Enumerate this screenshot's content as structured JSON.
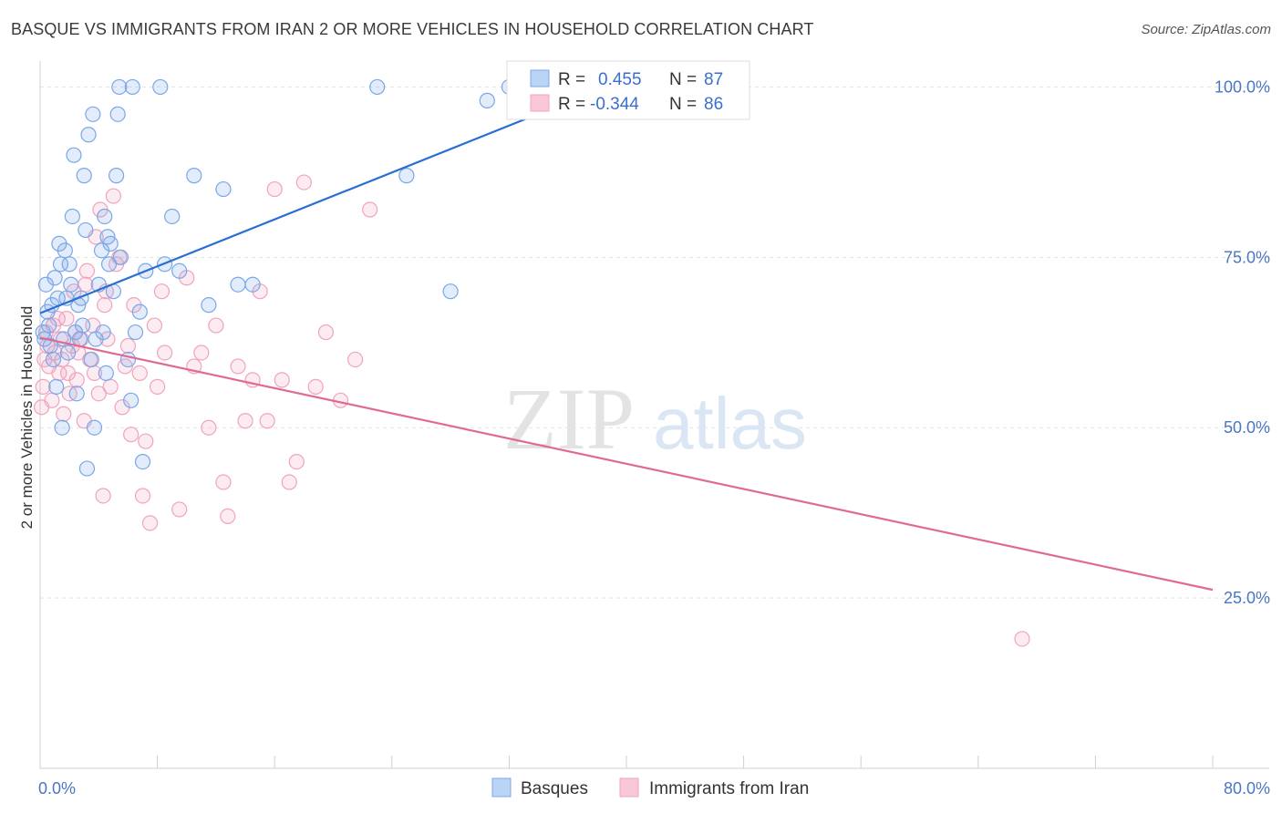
{
  "title": "BASQUE VS IMMIGRANTS FROM IRAN 2 OR MORE VEHICLES IN HOUSEHOLD CORRELATION CHART",
  "source": "Source: ZipAtlas.com",
  "watermark": {
    "zip": "ZIP",
    "atlas": "atlas"
  },
  "legend": {
    "rows": [
      {
        "r_label": "R =",
        "r_value": "0.455",
        "n_label": "N =",
        "n_value": "87"
      },
      {
        "r_label": "R =",
        "r_value": "-0.344",
        "n_label": "N =",
        "n_value": "86"
      }
    ]
  },
  "chart_data": {
    "type": "scatter",
    "title": "BASQUE VS IMMIGRANTS FROM IRAN 2 OR MORE VEHICLES IN HOUSEHOLD CORRELATION CHART",
    "xlabel": "",
    "ylabel": "2 or more Vehicles in Household",
    "xlim": [
      0,
      80
    ],
    "ylim": [
      0,
      103
    ],
    "x_ticks": [
      0,
      8,
      16,
      24,
      32,
      40,
      48,
      56,
      64,
      72,
      80
    ],
    "x_tick_labels": [
      {
        "value": 0,
        "label": "0.0%"
      },
      {
        "value": 80,
        "label": "80.0%"
      }
    ],
    "y_ticks": [
      {
        "value": 25,
        "label": "25.0%"
      },
      {
        "value": 50,
        "label": "50.0%"
      },
      {
        "value": 75,
        "label": "75.0%"
      },
      {
        "value": 100,
        "label": "100.0%"
      }
    ],
    "grid": true,
    "colors": {
      "blue": "#7aa7e8",
      "blue_line": "#2b6fd1",
      "pink": "#f0a3be",
      "pink_line": "#e06a92"
    },
    "series": [
      {
        "name": "Basques",
        "color": "#7aa7e8",
        "trend": {
          "x": [
            0,
            38
          ],
          "y": [
            66.8,
            99.5
          ]
        },
        "points": [
          [
            0.2,
            64
          ],
          [
            0.3,
            63
          ],
          [
            0.4,
            71
          ],
          [
            0.5,
            67
          ],
          [
            0.6,
            65
          ],
          [
            0.7,
            62
          ],
          [
            0.8,
            68
          ],
          [
            0.9,
            60
          ],
          [
            1.0,
            72
          ],
          [
            1.1,
            56
          ],
          [
            1.2,
            69
          ],
          [
            1.3,
            77
          ],
          [
            1.4,
            74
          ],
          [
            1.5,
            50
          ],
          [
            1.6,
            63
          ],
          [
            1.7,
            76
          ],
          [
            1.8,
            69
          ],
          [
            1.9,
            61
          ],
          [
            2.0,
            74
          ],
          [
            2.1,
            71
          ],
          [
            2.2,
            81
          ],
          [
            2.3,
            90
          ],
          [
            2.4,
            64
          ],
          [
            2.5,
            55
          ],
          [
            2.6,
            68
          ],
          [
            2.7,
            63
          ],
          [
            2.8,
            69
          ],
          [
            2.9,
            65
          ],
          [
            3.0,
            87
          ],
          [
            3.1,
            79
          ],
          [
            3.2,
            44
          ],
          [
            3.3,
            93
          ],
          [
            3.5,
            60
          ],
          [
            3.6,
            96
          ],
          [
            3.7,
            50
          ],
          [
            3.8,
            63
          ],
          [
            4.0,
            71
          ],
          [
            4.2,
            76
          ],
          [
            4.3,
            64
          ],
          [
            4.4,
            81
          ],
          [
            4.5,
            58
          ],
          [
            4.6,
            78
          ],
          [
            4.7,
            74
          ],
          [
            4.8,
            77
          ],
          [
            5.0,
            70
          ],
          [
            5.2,
            87
          ],
          [
            5.3,
            96
          ],
          [
            5.4,
            100
          ],
          [
            5.5,
            75
          ],
          [
            6.0,
            60
          ],
          [
            6.2,
            54
          ],
          [
            6.3,
            100
          ],
          [
            6.5,
            64
          ],
          [
            6.8,
            67
          ],
          [
            7.0,
            45
          ],
          [
            7.2,
            73
          ],
          [
            8.2,
            100
          ],
          [
            8.5,
            74
          ],
          [
            9.0,
            81
          ],
          [
            9.5,
            73
          ],
          [
            10.5,
            87
          ],
          [
            11.5,
            68
          ],
          [
            12.5,
            85
          ],
          [
            13.5,
            71
          ],
          [
            14.5,
            71
          ],
          [
            23.0,
            100
          ],
          [
            25.0,
            87
          ],
          [
            28.0,
            70
          ],
          [
            30.5,
            98
          ],
          [
            32.0,
            100
          ]
        ]
      },
      {
        "name": "Immigrants from Iran",
        "color": "#f0a3be",
        "trend": {
          "x": [
            0,
            80
          ],
          "y": [
            63.2,
            26.2
          ]
        },
        "points": [
          [
            0.1,
            53
          ],
          [
            0.2,
            56
          ],
          [
            0.3,
            60
          ],
          [
            0.4,
            64
          ],
          [
            0.5,
            62
          ],
          [
            0.6,
            59
          ],
          [
            0.8,
            54
          ],
          [
            0.9,
            65
          ],
          [
            1.0,
            61
          ],
          [
            1.2,
            66
          ],
          [
            1.3,
            58
          ],
          [
            1.4,
            63
          ],
          [
            1.5,
            60
          ],
          [
            1.6,
            52
          ],
          [
            1.8,
            66
          ],
          [
            1.9,
            58
          ],
          [
            2.0,
            55
          ],
          [
            2.2,
            62
          ],
          [
            2.3,
            70
          ],
          [
            2.4,
            64
          ],
          [
            2.5,
            57
          ],
          [
            2.6,
            61
          ],
          [
            2.8,
            63
          ],
          [
            3.0,
            51
          ],
          [
            3.1,
            71
          ],
          [
            3.2,
            73
          ],
          [
            3.4,
            60
          ],
          [
            3.6,
            65
          ],
          [
            3.7,
            58
          ],
          [
            3.8,
            78
          ],
          [
            4.0,
            55
          ],
          [
            4.1,
            82
          ],
          [
            4.3,
            40
          ],
          [
            4.4,
            68
          ],
          [
            4.5,
            70
          ],
          [
            4.6,
            63
          ],
          [
            4.8,
            56
          ],
          [
            5.0,
            84
          ],
          [
            5.2,
            74
          ],
          [
            5.4,
            75
          ],
          [
            5.6,
            53
          ],
          [
            5.8,
            59
          ],
          [
            6.0,
            62
          ],
          [
            6.2,
            49
          ],
          [
            6.4,
            68
          ],
          [
            6.8,
            58
          ],
          [
            7.0,
            40
          ],
          [
            7.2,
            48
          ],
          [
            7.5,
            36
          ],
          [
            7.8,
            65
          ],
          [
            8.0,
            56
          ],
          [
            8.3,
            70
          ],
          [
            8.5,
            61
          ],
          [
            9.5,
            38
          ],
          [
            10.0,
            72
          ],
          [
            10.5,
            59
          ],
          [
            11.0,
            61
          ],
          [
            11.5,
            50
          ],
          [
            12.0,
            65
          ],
          [
            12.5,
            42
          ],
          [
            12.8,
            37
          ],
          [
            13.5,
            59
          ],
          [
            14.0,
            51
          ],
          [
            14.5,
            57
          ],
          [
            15.0,
            70
          ],
          [
            15.5,
            51
          ],
          [
            16.0,
            85
          ],
          [
            16.5,
            57
          ],
          [
            17.0,
            42
          ],
          [
            17.5,
            45
          ],
          [
            18.0,
            86
          ],
          [
            18.8,
            56
          ],
          [
            19.5,
            64
          ],
          [
            20.5,
            54
          ],
          [
            21.5,
            60
          ],
          [
            22.5,
            82
          ],
          [
            67.0,
            19
          ]
        ]
      }
    ]
  },
  "bottom_legend": [
    {
      "label": "Basques"
    },
    {
      "label": "Immigrants from Iran"
    }
  ]
}
